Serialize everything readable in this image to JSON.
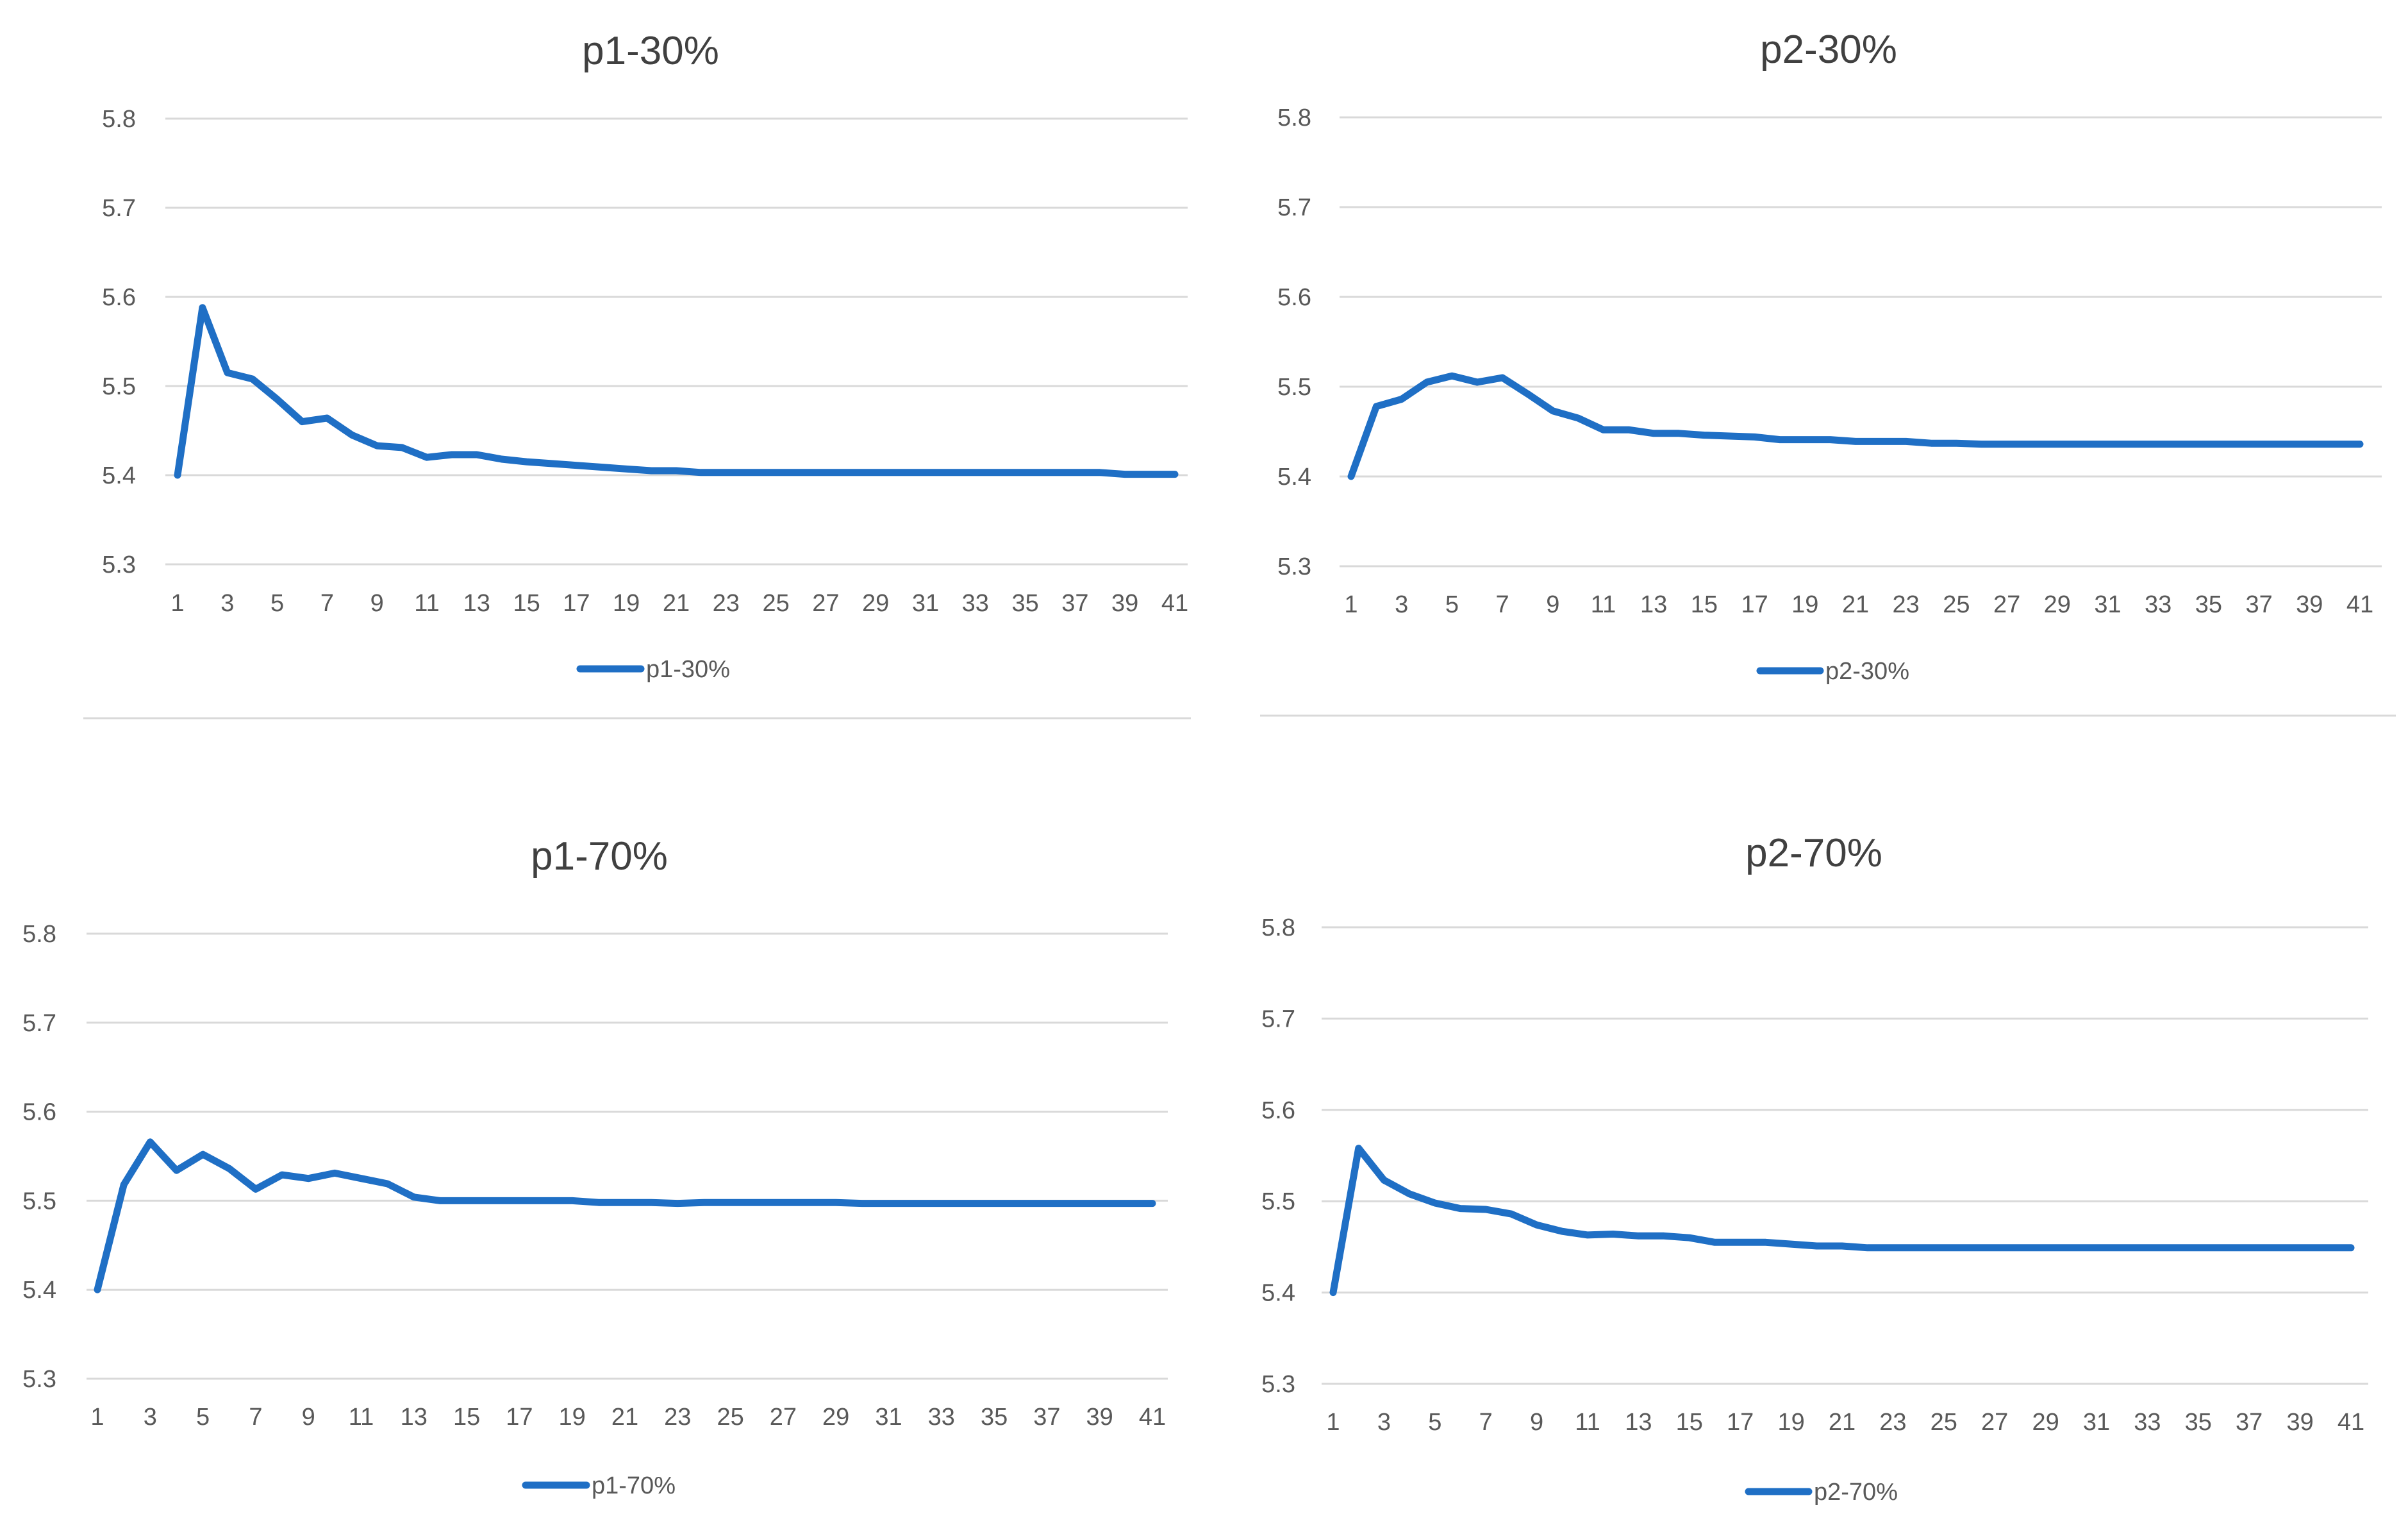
{
  "chart_data": [
    {
      "type": "line",
      "title": "p1-30%",
      "xlabel": "",
      "ylabel": "",
      "ylim": [
        5.3,
        5.8
      ],
      "yticks": [
        "5.8",
        "5.7",
        "5.6",
        "5.5",
        "5.4",
        "5.3"
      ],
      "xtick_labels": [
        "1",
        "3",
        "5",
        "7",
        "9",
        "11",
        "13",
        "15",
        "17",
        "19",
        "21",
        "23",
        "25",
        "27",
        "29",
        "31",
        "33",
        "35",
        "37",
        "39",
        "41"
      ],
      "grid": true,
      "legend": "bottom",
      "color": "#1f6fc5",
      "series": [
        {
          "name": "p1-30%",
          "x": [
            1,
            2,
            3,
            4,
            5,
            6,
            7,
            8,
            9,
            10,
            11,
            12,
            13,
            14,
            15,
            16,
            17,
            18,
            19,
            20,
            21,
            22,
            23,
            24,
            25,
            26,
            27,
            28,
            29,
            30,
            31,
            32,
            33,
            34,
            35,
            36,
            37,
            38,
            39,
            40,
            41
          ],
          "values": [
            5.4,
            5.588,
            5.515,
            5.508,
            5.485,
            5.46,
            5.464,
            5.445,
            5.433,
            5.431,
            5.42,
            5.423,
            5.423,
            5.418,
            5.415,
            5.413,
            5.411,
            5.409,
            5.407,
            5.405,
            5.405,
            5.403,
            5.403,
            5.403,
            5.403,
            5.403,
            5.403,
            5.403,
            5.403,
            5.403,
            5.403,
            5.403,
            5.403,
            5.403,
            5.403,
            5.403,
            5.403,
            5.403,
            5.401,
            5.401,
            5.401
          ]
        }
      ]
    },
    {
      "type": "line",
      "title": "p2-30%",
      "xlabel": "",
      "ylabel": "",
      "ylim": [
        5.3,
        5.8
      ],
      "yticks": [
        "5.8",
        "5.7",
        "5.6",
        "5.5",
        "5.4",
        "5.3"
      ],
      "xtick_labels": [
        "1",
        "3",
        "5",
        "7",
        "9",
        "11",
        "13",
        "15",
        "17",
        "19",
        "21",
        "23",
        "25",
        "27",
        "29",
        "31",
        "33",
        "35",
        "37",
        "39",
        "41"
      ],
      "grid": true,
      "legend": "bottom",
      "color": "#1f6fc5",
      "series": [
        {
          "name": "p2-30%",
          "x": [
            1,
            2,
            3,
            4,
            5,
            6,
            7,
            8,
            9,
            10,
            11,
            12,
            13,
            14,
            15,
            16,
            17,
            18,
            19,
            20,
            21,
            22,
            23,
            24,
            25,
            26,
            27,
            28,
            29,
            30,
            31,
            32,
            33,
            34,
            35,
            36,
            37,
            38,
            39,
            40,
            41
          ],
          "values": [
            5.4,
            5.478,
            5.486,
            5.505,
            5.512,
            5.505,
            5.51,
            5.492,
            5.473,
            5.465,
            5.452,
            5.452,
            5.448,
            5.448,
            5.446,
            5.445,
            5.444,
            5.441,
            5.441,
            5.441,
            5.439,
            5.439,
            5.439,
            5.437,
            5.437,
            5.436,
            5.436,
            5.436,
            5.436,
            5.436,
            5.436,
            5.436,
            5.436,
            5.436,
            5.436,
            5.436,
            5.436,
            5.436,
            5.436,
            5.436,
            5.436
          ]
        }
      ]
    },
    {
      "type": "line",
      "title": "p1-70%",
      "xlabel": "",
      "ylabel": "",
      "ylim": [
        5.3,
        5.8
      ],
      "yticks": [
        "5.8",
        "5.7",
        "5.6",
        "5.5",
        "5.4",
        "5.3"
      ],
      "xtick_labels": [
        "1",
        "3",
        "5",
        "7",
        "9",
        "11",
        "13",
        "15",
        "17",
        "19",
        "21",
        "23",
        "25",
        "27",
        "29",
        "31",
        "33",
        "35",
        "37",
        "39",
        "41"
      ],
      "grid": true,
      "legend": "bottom",
      "color": "#1f6fc5",
      "series": [
        {
          "name": "p1-70%",
          "x": [
            1,
            2,
            3,
            4,
            5,
            6,
            7,
            8,
            9,
            10,
            11,
            12,
            13,
            14,
            15,
            16,
            17,
            18,
            19,
            20,
            21,
            22,
            23,
            24,
            25,
            26,
            27,
            28,
            29,
            30,
            31,
            32,
            33,
            34,
            35,
            36,
            37,
            38,
            39,
            40,
            41
          ],
          "values": [
            5.4,
            5.518,
            5.566,
            5.534,
            5.552,
            5.536,
            5.513,
            5.529,
            5.525,
            5.531,
            5.525,
            5.519,
            5.504,
            5.5,
            5.5,
            5.5,
            5.5,
            5.5,
            5.5,
            5.498,
            5.498,
            5.498,
            5.497,
            5.498,
            5.498,
            5.498,
            5.498,
            5.498,
            5.498,
            5.497,
            5.497,
            5.497,
            5.497,
            5.497,
            5.497,
            5.497,
            5.497,
            5.497,
            5.497,
            5.497,
            5.497
          ]
        }
      ]
    },
    {
      "type": "line",
      "title": "p2-70%",
      "xlabel": "",
      "ylabel": "",
      "ylim": [
        5.3,
        5.8
      ],
      "yticks": [
        "5.8",
        "5.7",
        "5.6",
        "5.5",
        "5.4",
        "5.3"
      ],
      "xtick_labels": [
        "1",
        "3",
        "5",
        "7",
        "9",
        "11",
        "13",
        "15",
        "17",
        "19",
        "21",
        "23",
        "25",
        "27",
        "29",
        "31",
        "33",
        "35",
        "37",
        "39",
        "41"
      ],
      "grid": true,
      "legend": "bottom",
      "color": "#1f6fc5",
      "series": [
        {
          "name": "p2-70%",
          "x": [
            1,
            2,
            3,
            4,
            5,
            6,
            7,
            8,
            9,
            10,
            11,
            12,
            13,
            14,
            15,
            16,
            17,
            18,
            19,
            20,
            21,
            22,
            23,
            24,
            25,
            26,
            27,
            28,
            29,
            30,
            31,
            32,
            33,
            34,
            35,
            36,
            37,
            38,
            39,
            40,
            41
          ],
          "values": [
            5.4,
            5.558,
            5.523,
            5.508,
            5.498,
            5.492,
            5.491,
            5.486,
            5.474,
            5.467,
            5.463,
            5.464,
            5.462,
            5.462,
            5.46,
            5.455,
            5.455,
            5.455,
            5.453,
            5.451,
            5.451,
            5.449,
            5.449,
            5.449,
            5.449,
            5.449,
            5.449,
            5.449,
            5.449,
            5.449,
            5.449,
            5.449,
            5.449,
            5.449,
            5.449,
            5.449,
            5.449,
            5.449,
            5.449,
            5.449,
            5.449
          ]
        }
      ]
    }
  ]
}
